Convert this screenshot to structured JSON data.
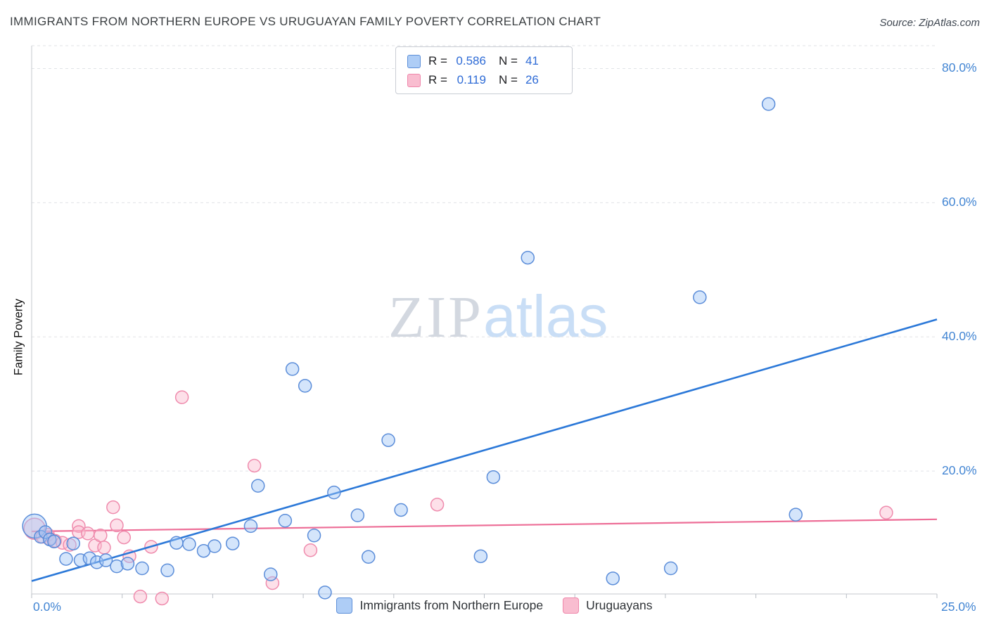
{
  "header": {
    "title": "IMMIGRANTS FROM NORTHERN EUROPE VS URUGUAYAN FAMILY POVERTY CORRELATION CHART",
    "source": "Source: ZipAtlas.com"
  },
  "legend_box": {
    "series": [
      {
        "r_label": "R =",
        "r_value": "0.586",
        "n_label": "N =",
        "n_value": "41"
      },
      {
        "r_label": "R =",
        "r_value": "0.119",
        "n_label": "N =",
        "n_value": "26"
      }
    ]
  },
  "axes": {
    "y_label": "Family Poverty",
    "y_ticks": [
      "80.0%",
      "60.0%",
      "40.0%",
      "20.0%"
    ],
    "x_min_label": "0.0%",
    "x_max_label": "25.0%"
  },
  "watermark": {
    "zip": "ZIP",
    "atlas": "atlas"
  },
  "bottom_legend": [
    {
      "label": "Immigrants from Northern Europe"
    },
    {
      "label": "Uruguayans"
    }
  ],
  "chart_data": {
    "type": "scatter",
    "title": "IMMIGRANTS FROM NORTHERN EUROPE VS URUGUAYAN FAMILY POVERTY CORRELATION CHART",
    "xlabel": "Immigrants from Northern Europe (%)",
    "ylabel": "Family Poverty (%)",
    "xlim": [
      0,
      25
    ],
    "ylim": [
      0,
      83.4
    ],
    "grid": true,
    "y_gridlines": [
      20,
      40,
      60,
      80
    ],
    "x_tick_step": 2.5,
    "series": [
      {
        "name": "Immigrants from Northern Europe",
        "R": 0.586,
        "N": 41,
        "stroke": "#5b8dd9",
        "fill": "rgba(160,198,247,0.45)",
        "line_color": "#2b78d8",
        "swatch_fill": "#aecdf6",
        "swatch_border": "#5d8fd8",
        "trend": {
          "x1": 0,
          "y1": 3.6,
          "x2": 25,
          "y2": 42.6
        },
        "points": [
          [
            0.08,
            11.8,
            17
          ],
          [
            0.25,
            10.2
          ],
          [
            0.38,
            10.9
          ],
          [
            0.5,
            9.8
          ],
          [
            0.62,
            9.5
          ],
          [
            0.95,
            6.9
          ],
          [
            1.15,
            9.2
          ],
          [
            1.35,
            6.7
          ],
          [
            1.6,
            7.0
          ],
          [
            1.8,
            6.4
          ],
          [
            2.05,
            6.7
          ],
          [
            2.35,
            5.8
          ],
          [
            2.65,
            6.2
          ],
          [
            3.05,
            5.5
          ],
          [
            3.75,
            5.2
          ],
          [
            4.0,
            9.3
          ],
          [
            4.35,
            9.1
          ],
          [
            4.75,
            8.1
          ],
          [
            5.05,
            8.8
          ],
          [
            5.55,
            9.2
          ],
          [
            6.05,
            11.8
          ],
          [
            6.25,
            17.8
          ],
          [
            6.6,
            4.6
          ],
          [
            7.0,
            12.6
          ],
          [
            7.2,
            35.2
          ],
          [
            7.55,
            32.7
          ],
          [
            7.8,
            10.4
          ],
          [
            8.1,
            1.9
          ],
          [
            8.35,
            16.8
          ],
          [
            9.0,
            13.4
          ],
          [
            9.3,
            7.2
          ],
          [
            9.85,
            24.6
          ],
          [
            10.2,
            14.2
          ],
          [
            12.4,
            7.3
          ],
          [
            12.75,
            19.1
          ],
          [
            13.7,
            51.8
          ],
          [
            16.05,
            4.0
          ],
          [
            17.65,
            5.5
          ],
          [
            18.45,
            45.9
          ],
          [
            20.35,
            74.7
          ],
          [
            21.1,
            13.5
          ]
        ]
      },
      {
        "name": "Uruguayans",
        "R": 0.119,
        "N": 26,
        "stroke": "#ef8bad",
        "fill": "rgba(250,186,207,0.45)",
        "line_color": "#ed6e97",
        "swatch_fill": "#f9bdd0",
        "swatch_border": "#ef87ab",
        "trend": {
          "x1": 0,
          "y1": 11.0,
          "x2": 25,
          "y2": 12.8
        },
        "points": [
          [
            0.08,
            11.4,
            15
          ],
          [
            0.3,
            10.2
          ],
          [
            0.45,
            10.5
          ],
          [
            0.5,
            9.9
          ],
          [
            0.65,
            9.6
          ],
          [
            0.85,
            9.3
          ],
          [
            1.05,
            9.0
          ],
          [
            1.3,
            11.8
          ],
          [
            1.3,
            10.9
          ],
          [
            1.55,
            10.7
          ],
          [
            1.75,
            8.9
          ],
          [
            1.9,
            10.4
          ],
          [
            2.0,
            8.6
          ],
          [
            2.25,
            14.6
          ],
          [
            2.35,
            11.9
          ],
          [
            2.55,
            10.1
          ],
          [
            2.7,
            7.3
          ],
          [
            3.0,
            1.3
          ],
          [
            3.3,
            8.7
          ],
          [
            3.6,
            1.0
          ],
          [
            4.15,
            31.0
          ],
          [
            6.15,
            20.8
          ],
          [
            6.65,
            3.3
          ],
          [
            7.7,
            8.2
          ],
          [
            11.2,
            15.0
          ],
          [
            23.6,
            13.8
          ]
        ]
      }
    ]
  }
}
